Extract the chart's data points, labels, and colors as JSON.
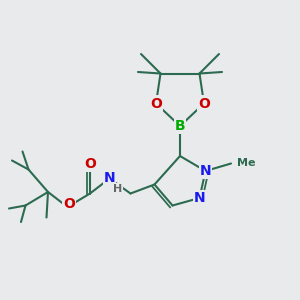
{
  "background_color": "#e8eaec",
  "bond_color": "#2d6b50",
  "bond_width": 1.5,
  "atom_colors": {
    "B": "#00aa00",
    "O": "#cc0000",
    "N": "#1a1aee",
    "C": "#2d6b50",
    "H": "#666666"
  },
  "layout": {
    "xlim": [
      0,
      10
    ],
    "ylim": [
      0,
      10
    ]
  }
}
